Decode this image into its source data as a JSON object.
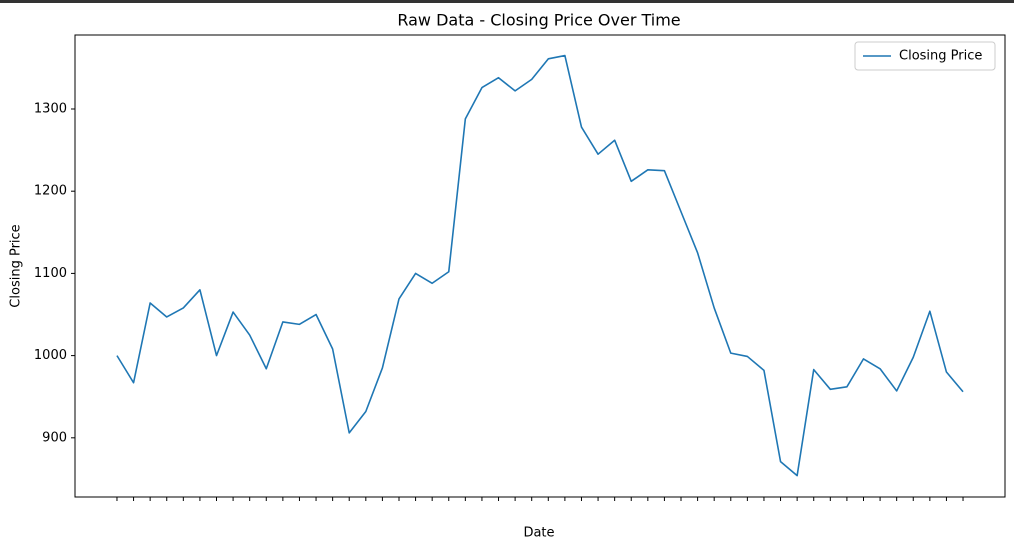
{
  "chart_data": {
    "type": "line",
    "title": "Raw Data - Closing Price Over Time",
    "x_label": "Date",
    "y_label": "Closing Price",
    "categories": [
      null,
      null,
      null,
      null,
      null,
      null,
      null,
      null,
      null,
      null,
      null,
      null,
      null,
      null,
      null,
      null,
      null,
      null,
      null,
      null,
      null,
      null,
      null,
      null,
      null,
      null,
      null,
      null,
      null,
      null,
      null,
      null,
      null,
      null,
      null,
      null,
      null,
      null,
      null,
      null,
      null,
      null,
      null,
      null,
      null,
      null,
      null,
      null,
      null,
      null,
      null,
      null
    ],
    "series": [
      {
        "name": "Closing Price",
        "color": "#1f77b4",
        "values": [
          1000,
          967,
          1064,
          1047,
          1058,
          1080,
          1000,
          1053,
          1025,
          984,
          1041,
          1038,
          1050,
          1008,
          906,
          932,
          985,
          1069,
          1100,
          1088,
          1102,
          1288,
          1326,
          1338,
          1322,
          1336,
          1361,
          1365,
          1278,
          1245,
          1262,
          1212,
          1226,
          1225,
          1175,
          1125,
          1058,
          1003,
          999,
          982,
          871,
          854,
          983,
          959,
          962,
          996,
          984,
          957,
          998,
          1054,
          980,
          956
        ]
      }
    ],
    "ylim": [
      828,
      1390
    ],
    "yticks": [
      900,
      1000,
      1100,
      1200,
      1300
    ],
    "grid": false,
    "legend": "upper right"
  }
}
